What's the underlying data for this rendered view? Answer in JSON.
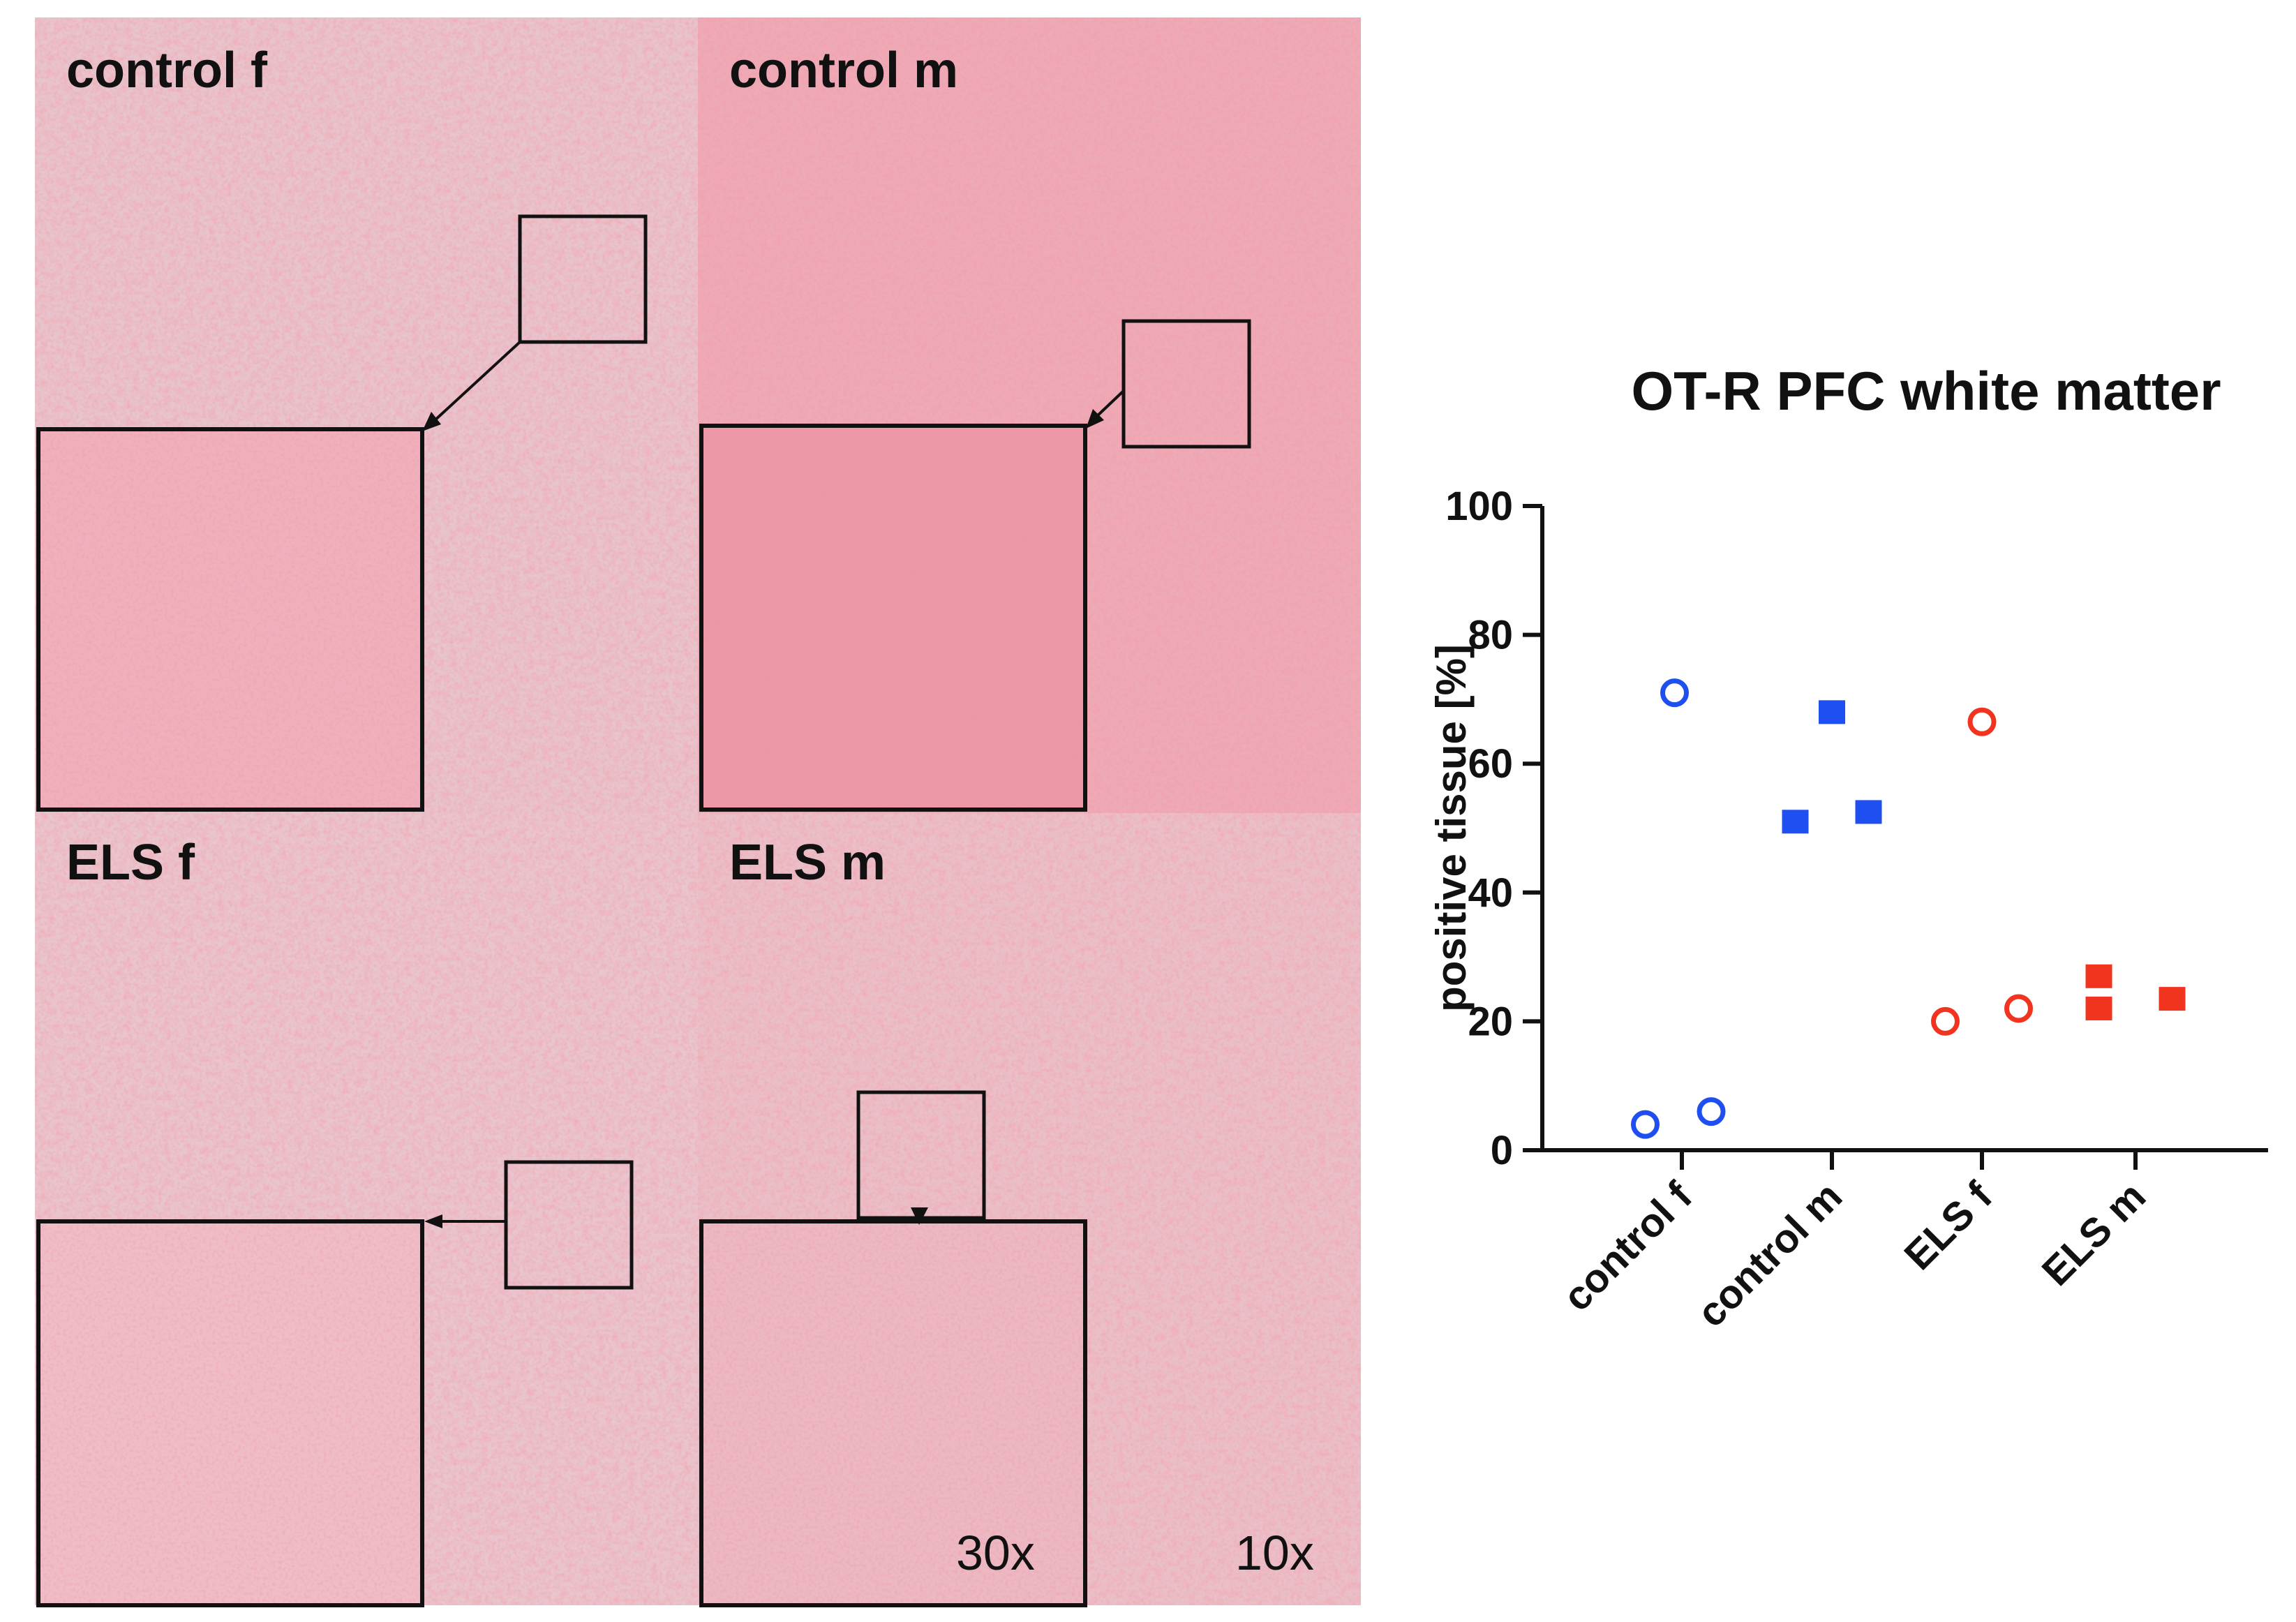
{
  "panels": {
    "control_f": {
      "label": "control f"
    },
    "control_m": {
      "label": "control m"
    },
    "els_f": {
      "label": "ELS f"
    },
    "els_m": {
      "label": "ELS m"
    }
  },
  "magnification": {
    "inset": "30x",
    "overview": "10x"
  },
  "colors": {
    "tissue_background": "#eab9c2",
    "stain_red": "#e8505f",
    "control_color": "#1f4ff0",
    "els_color": "#f0341f"
  },
  "chart_data": {
    "type": "scatter",
    "title": "OT-R PFC white matter",
    "xlabel": "",
    "ylabel": "positive tissue [%]",
    "ylim": [
      0,
      100
    ],
    "yticks": [
      0,
      20,
      40,
      60,
      80,
      100
    ],
    "categories": [
      "control f",
      "control m",
      "ELS f",
      "ELS m"
    ],
    "series": [
      {
        "name": "control f",
        "marker": "open-circle",
        "color": "#1f4ff0",
        "points": [
          {
            "x": 0,
            "offset": -0.25,
            "y": 4
          },
          {
            "x": 0,
            "offset": -0.05,
            "y": 71
          },
          {
            "x": 0,
            "offset": 0.2,
            "y": 6
          }
        ]
      },
      {
        "name": "control m",
        "marker": "filled-square",
        "color": "#1f4ff0",
        "points": [
          {
            "x": 1,
            "offset": -0.25,
            "y": 51
          },
          {
            "x": 1,
            "offset": 0.0,
            "y": 68
          },
          {
            "x": 1,
            "offset": 0.25,
            "y": 52.5
          }
        ]
      },
      {
        "name": "ELS f",
        "marker": "open-circle",
        "color": "#f0341f",
        "points": [
          {
            "x": 2,
            "offset": -0.25,
            "y": 20
          },
          {
            "x": 2,
            "offset": 0.0,
            "y": 66.5
          },
          {
            "x": 2,
            "offset": 0.25,
            "y": 22
          }
        ]
      },
      {
        "name": "ELS m",
        "marker": "filled-square",
        "color": "#f0341f",
        "points": [
          {
            "x": 3,
            "offset": -0.25,
            "y": 27
          },
          {
            "x": 3,
            "offset": -0.25,
            "y": 22
          },
          {
            "x": 3,
            "offset": 0.25,
            "y": 23.5
          }
        ]
      }
    ]
  }
}
